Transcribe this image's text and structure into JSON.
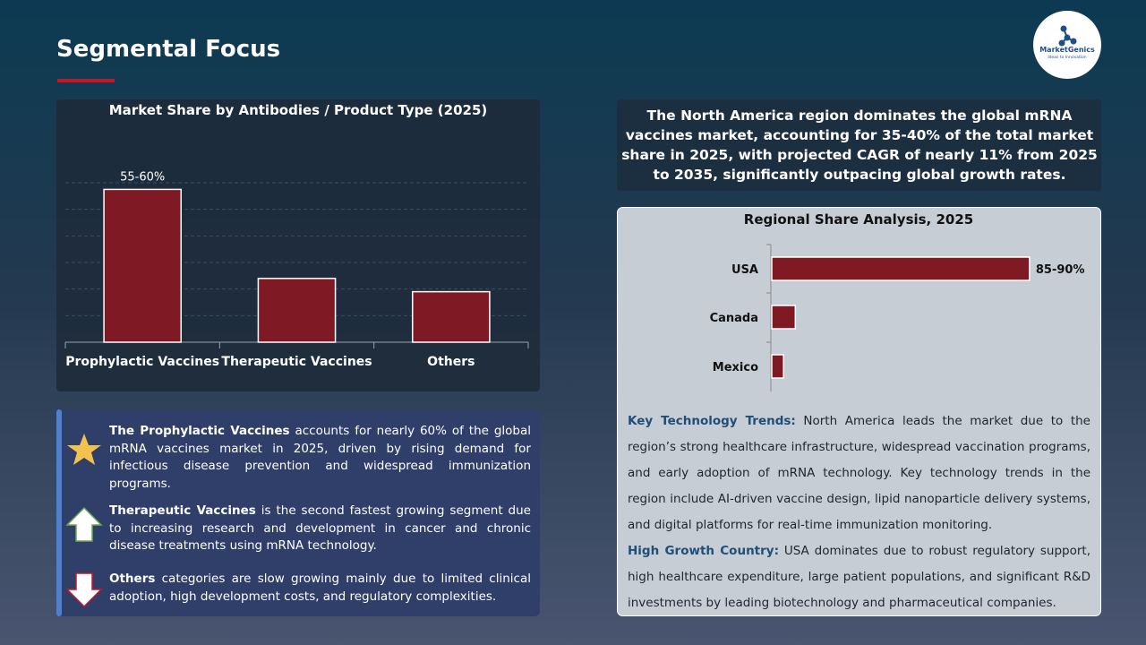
{
  "header": {
    "title": "Segmental Focus"
  },
  "logo": {
    "name": "MarketGenics",
    "tagline": "Ideas to Innovation"
  },
  "chart_data": [
    {
      "type": "bar",
      "title": "Market Share by Antibodies / Product Type (2025)",
      "categories": [
        "Prophylactic Vaccines",
        "Therapeutic Vaccines",
        "Others"
      ],
      "values": [
        57.5,
        24,
        19
      ],
      "value_labels": [
        "55-60%",
        null,
        null
      ],
      "color": "#7f1a24",
      "ylim": [
        0,
        60
      ],
      "grid": true
    },
    {
      "type": "hbar",
      "title": "Regional Share Analysis, 2025",
      "categories": [
        "USA",
        "Canada",
        "Mexico"
      ],
      "values": [
        87.5,
        8,
        4
      ],
      "value_labels": [
        "85-90%",
        null,
        null
      ],
      "color": "#7f1a24",
      "xlim": [
        0,
        100
      ]
    }
  ],
  "summary": "The North America region dominates the global mRNA vaccines market, accounting for 35-40% of the total market share in 2025, with projected CAGR of nearly 11% from 2025 to 2035, significantly outpacing global growth rates.",
  "bullets": [
    {
      "lead": "The Prophylactic Vaccines",
      "text": " accounts for nearly 60% of the global mRNA vaccines market in 2025, driven by rising demand for infectious disease prevention and widespread immunization programs."
    },
    {
      "lead": "Therapeutic Vaccines",
      "text": " is the second fastest growing segment due to increasing research and development in cancer and chronic disease treatments using mRNA technology."
    },
    {
      "lead": "Others",
      "text": " categories are slow growing mainly due to limited clinical adoption, high development costs, and regulatory complexities."
    }
  ],
  "insights": [
    {
      "label": "Key Technology Trends:",
      "text": " North America leads the market due to the region’s strong healthcare infrastructure, widespread vaccination programs, and early adoption of mRNA technology. Key technology trends in the region include AI-driven vaccine design, lipid nanoparticle delivery systems, and digital platforms for real-time immunization monitoring."
    },
    {
      "label": "High Growth Country:",
      "text": " USA dominates due to robust regulatory support, high healthcare expenditure, large patient populations, and significant R&D investments by leading biotechnology and pharmaceutical companies."
    }
  ]
}
